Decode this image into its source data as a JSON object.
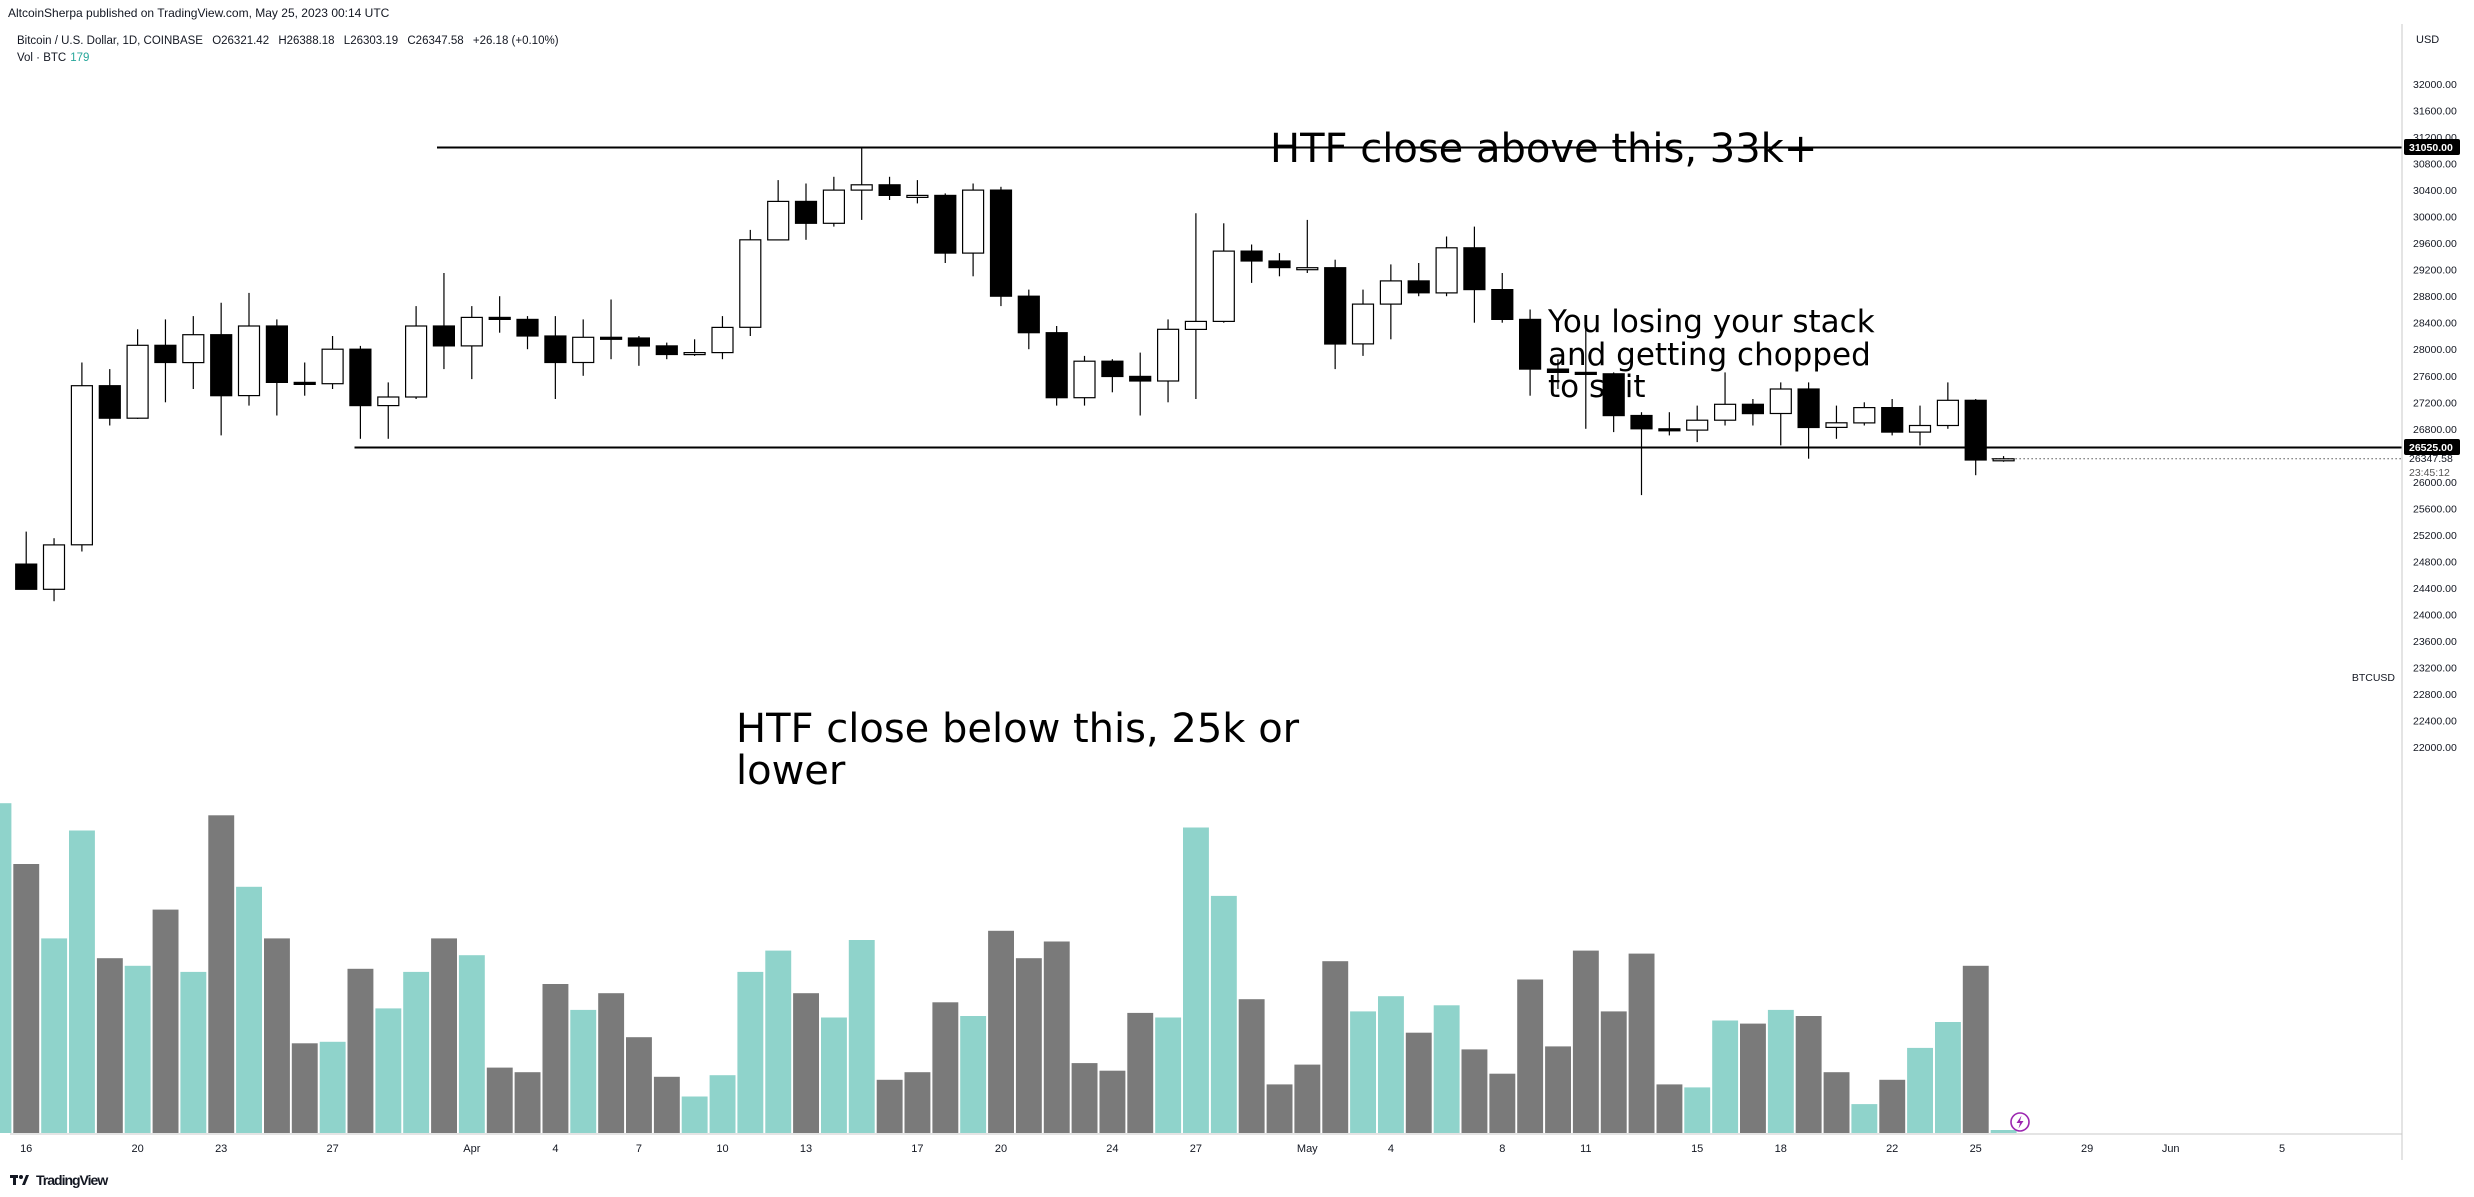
{
  "header": {
    "published_line": "AltcoinSherpa published on TradingView.com, May 25, 2023 00:14 UTC",
    "symbol_line": [
      "Bitcoin / U.S. Dollar, 1D, COINBASE",
      "O26321.42",
      "H26388.18",
      "L26303.19",
      "C26347.58",
      "+26.18 (+0.10%)"
    ],
    "volume_label": "Vol · BTC",
    "volume_value": "179"
  },
  "annotations": {
    "top": "HTF close above this, 33k+",
    "middle": "You losing your stack\nand getting chopped\nto shit",
    "bottom": "HTF close below this, 25k or\nlower"
  },
  "footer": {
    "brand": "TradingView"
  },
  "colors": {
    "up_body": "#ffffff",
    "down_body": "#000000",
    "vol_up": "#8fd3cb",
    "vol_down": "#7a7a7a",
    "volume_accent": "#26a69a",
    "line": "#000000"
  },
  "chart_data": {
    "type": "candlestick",
    "symbol": "BTCUSD",
    "currency_label": "USD",
    "y_ticks": [
      "32000.00",
      "31600.00",
      "31200.00",
      "30800.00",
      "30400.00",
      "30000.00",
      "29600.00",
      "29200.00",
      "28800.00",
      "28400.00",
      "28000.00",
      "27600.00",
      "27200.00",
      "26800.00",
      "26000.00",
      "25600.00",
      "25200.00",
      "24800.00",
      "24400.00",
      "24000.00",
      "23600.00",
      "23200.00",
      "22800.00",
      "22400.00",
      "22000.00"
    ],
    "ylim": [
      21980,
      32500
    ],
    "x_ticks": [
      "16",
      "20",
      "23",
      "27",
      "Apr",
      "4",
      "7",
      "10",
      "13",
      "17",
      "20",
      "24",
      "27",
      "May",
      "4",
      "8",
      "11",
      "15",
      "18",
      "22",
      "25",
      "29",
      "Jun",
      "5"
    ],
    "x_tick_index": [
      1,
      5,
      8,
      12,
      17,
      20,
      23,
      26,
      29,
      33,
      36,
      40,
      43,
      47,
      50,
      54,
      57,
      61,
      64,
      68,
      71,
      75,
      78,
      82
    ],
    "horizontal_levels": [
      {
        "label": "31050.00",
        "value": 31050
      },
      {
        "label": "26525.00",
        "value": 26525
      }
    ],
    "last_price_label": "26347.58",
    "countdown_label": "23:45:12",
    "candles": [
      {
        "date": "2023-03-15",
        "o": 24760,
        "h": 25250,
        "l": 24400,
        "c": 24380
      },
      {
        "date": "2023-03-16",
        "o": 24380,
        "h": 25150,
        "l": 24200,
        "c": 25050
      },
      {
        "date": "2023-03-17",
        "o": 25050,
        "h": 27800,
        "l": 24950,
        "c": 27450
      },
      {
        "date": "2023-03-18",
        "o": 27450,
        "h": 27700,
        "l": 26850,
        "c": 26960
      },
      {
        "date": "2023-03-19",
        "o": 26960,
        "h": 28300,
        "l": 26950,
        "c": 28060
      },
      {
        "date": "2023-03-20",
        "o": 28060,
        "h": 28450,
        "l": 27200,
        "c": 27800
      },
      {
        "date": "2023-03-21",
        "o": 27800,
        "h": 28500,
        "l": 27400,
        "c": 28220
      },
      {
        "date": "2023-03-22",
        "o": 28220,
        "h": 28700,
        "l": 26700,
        "c": 27300
      },
      {
        "date": "2023-03-23",
        "o": 27300,
        "h": 28850,
        "l": 27150,
        "c": 28350
      },
      {
        "date": "2023-03-24",
        "o": 28350,
        "h": 28450,
        "l": 27000,
        "c": 27500
      },
      {
        "date": "2023-03-25",
        "o": 27500,
        "h": 27800,
        "l": 27300,
        "c": 27480
      },
      {
        "date": "2023-03-26",
        "o": 27480,
        "h": 28200,
        "l": 27400,
        "c": 28000
      },
      {
        "date": "2023-03-27",
        "o": 28000,
        "h": 28050,
        "l": 26650,
        "c": 27150
      },
      {
        "date": "2023-03-28",
        "o": 27150,
        "h": 27500,
        "l": 26650,
        "c": 27280
      },
      {
        "date": "2023-03-29",
        "o": 27280,
        "h": 28650,
        "l": 27250,
        "c": 28350
      },
      {
        "date": "2023-03-30",
        "o": 28350,
        "h": 29150,
        "l": 27700,
        "c": 28050
      },
      {
        "date": "2023-03-31",
        "o": 28050,
        "h": 28650,
        "l": 27550,
        "c": 28480
      },
      {
        "date": "2023-04-01",
        "o": 28480,
        "h": 28800,
        "l": 28250,
        "c": 28450
      },
      {
        "date": "2023-04-02",
        "o": 28450,
        "h": 28500,
        "l": 28000,
        "c": 28200
      },
      {
        "date": "2023-04-03",
        "o": 28200,
        "h": 28500,
        "l": 27250,
        "c": 27800
      },
      {
        "date": "2023-04-04",
        "o": 27800,
        "h": 28450,
        "l": 27600,
        "c": 28180
      },
      {
        "date": "2023-04-05",
        "o": 28180,
        "h": 28750,
        "l": 27850,
        "c": 28170
      },
      {
        "date": "2023-04-06",
        "o": 28170,
        "h": 28200,
        "l": 27750,
        "c": 28050
      },
      {
        "date": "2023-04-07",
        "o": 28050,
        "h": 28100,
        "l": 27850,
        "c": 27920
      },
      {
        "date": "2023-04-08",
        "o": 27920,
        "h": 28150,
        "l": 27900,
        "c": 27950
      },
      {
        "date": "2023-04-09",
        "o": 27950,
        "h": 28500,
        "l": 27850,
        "c": 28330
      },
      {
        "date": "2023-04-10",
        "o": 28330,
        "h": 29800,
        "l": 28200,
        "c": 29650
      },
      {
        "date": "2023-04-11",
        "o": 29650,
        "h": 30550,
        "l": 29650,
        "c": 30230
      },
      {
        "date": "2023-04-12",
        "o": 30230,
        "h": 30500,
        "l": 29650,
        "c": 29900
      },
      {
        "date": "2023-04-13",
        "o": 29900,
        "h": 30600,
        "l": 29850,
        "c": 30400
      },
      {
        "date": "2023-04-14",
        "o": 30400,
        "h": 31050,
        "l": 29950,
        "c": 30480
      },
      {
        "date": "2023-04-15",
        "o": 30480,
        "h": 30600,
        "l": 30250,
        "c": 30320
      },
      {
        "date": "2023-04-16",
        "o": 30320,
        "h": 30550,
        "l": 30200,
        "c": 30320
      },
      {
        "date": "2023-04-17",
        "o": 30320,
        "h": 30350,
        "l": 29300,
        "c": 29450
      },
      {
        "date": "2023-04-18",
        "o": 29450,
        "h": 30500,
        "l": 29100,
        "c": 30400
      },
      {
        "date": "2023-04-19",
        "o": 30400,
        "h": 30450,
        "l": 28650,
        "c": 28800
      },
      {
        "date": "2023-04-20",
        "o": 28800,
        "h": 28900,
        "l": 28000,
        "c": 28250
      },
      {
        "date": "2023-04-21",
        "o": 28250,
        "h": 28350,
        "l": 27150,
        "c": 27270
      },
      {
        "date": "2023-04-22",
        "o": 27270,
        "h": 27900,
        "l": 27150,
        "c": 27820
      },
      {
        "date": "2023-04-23",
        "o": 27820,
        "h": 27850,
        "l": 27350,
        "c": 27590
      },
      {
        "date": "2023-04-24",
        "o": 27590,
        "h": 27950,
        "l": 27000,
        "c": 27520
      },
      {
        "date": "2023-04-25",
        "o": 27520,
        "h": 28450,
        "l": 27200,
        "c": 28300
      },
      {
        "date": "2023-04-26",
        "o": 28300,
        "h": 30050,
        "l": 27250,
        "c": 28420
      },
      {
        "date": "2023-04-27",
        "o": 28420,
        "h": 29900,
        "l": 28400,
        "c": 29480
      },
      {
        "date": "2023-04-28",
        "o": 29480,
        "h": 29580,
        "l": 29000,
        "c": 29330
      },
      {
        "date": "2023-04-29",
        "o": 29330,
        "h": 29450,
        "l": 29100,
        "c": 29230
      },
      {
        "date": "2023-04-30",
        "o": 29230,
        "h": 29950,
        "l": 29150,
        "c": 29230
      },
      {
        "date": "2023-05-01",
        "o": 29230,
        "h": 29350,
        "l": 27700,
        "c": 28080
      },
      {
        "date": "2023-05-02",
        "o": 28080,
        "h": 28900,
        "l": 27900,
        "c": 28680
      },
      {
        "date": "2023-05-03",
        "o": 28680,
        "h": 29280,
        "l": 28150,
        "c": 29030
      },
      {
        "date": "2023-05-04",
        "o": 29030,
        "h": 29300,
        "l": 28800,
        "c": 28850
      },
      {
        "date": "2023-05-05",
        "o": 28850,
        "h": 29700,
        "l": 28800,
        "c": 29530
      },
      {
        "date": "2023-05-06",
        "o": 29530,
        "h": 29850,
        "l": 28400,
        "c": 28900
      },
      {
        "date": "2023-05-07",
        "o": 28900,
        "h": 29150,
        "l": 28400,
        "c": 28450
      },
      {
        "date": "2023-05-08",
        "o": 28450,
        "h": 28600,
        "l": 27300,
        "c": 27700
      },
      {
        "date": "2023-05-09",
        "o": 27700,
        "h": 27850,
        "l": 27400,
        "c": 27650
      },
      {
        "date": "2023-05-10",
        "o": 27650,
        "h": 28350,
        "l": 26800,
        "c": 27630
      },
      {
        "date": "2023-05-11",
        "o": 27630,
        "h": 27650,
        "l": 26750,
        "c": 27000
      },
      {
        "date": "2023-05-12",
        "o": 27000,
        "h": 27050,
        "l": 25800,
        "c": 26800
      },
      {
        "date": "2023-05-13",
        "o": 26800,
        "h": 27050,
        "l": 26700,
        "c": 26780
      },
      {
        "date": "2023-05-14",
        "o": 26780,
        "h": 27150,
        "l": 26600,
        "c": 26930
      },
      {
        "date": "2023-05-15",
        "o": 26930,
        "h": 27650,
        "l": 26850,
        "c": 27170
      },
      {
        "date": "2023-05-16",
        "o": 27170,
        "h": 27250,
        "l": 26850,
        "c": 27030
      },
      {
        "date": "2023-05-17",
        "o": 27030,
        "h": 27500,
        "l": 26550,
        "c": 27400
      },
      {
        "date": "2023-05-18",
        "o": 27400,
        "h": 27500,
        "l": 26350,
        "c": 26820
      },
      {
        "date": "2023-05-19",
        "o": 26820,
        "h": 27150,
        "l": 26650,
        "c": 26890
      },
      {
        "date": "2023-05-20",
        "o": 26890,
        "h": 27200,
        "l": 26850,
        "c": 27120
      },
      {
        "date": "2023-05-21",
        "o": 27120,
        "h": 27250,
        "l": 26700,
        "c": 26750
      },
      {
        "date": "2023-05-22",
        "o": 26750,
        "h": 27150,
        "l": 26550,
        "c": 26850
      },
      {
        "date": "2023-05-23",
        "o": 26850,
        "h": 27500,
        "l": 26800,
        "c": 27230
      },
      {
        "date": "2023-05-24",
        "o": 27230,
        "h": 27250,
        "l": 26100,
        "c": 26330
      },
      {
        "date": "2023-05-25",
        "o": 26321.42,
        "h": 26388.18,
        "l": 26303.19,
        "c": 26347.58
      }
    ],
    "volume": [
      {
        "date": "2023-03-14",
        "up": true,
        "v": 21.7
      },
      {
        "date": "2023-03-15",
        "up": false,
        "v": 17.7
      },
      {
        "date": "2023-03-16",
        "up": true,
        "v": 12.8
      },
      {
        "date": "2023-03-17",
        "up": true,
        "v": 19.9
      },
      {
        "date": "2023-03-18",
        "up": false,
        "v": 11.5
      },
      {
        "date": "2023-03-19",
        "up": true,
        "v": 11.0
      },
      {
        "date": "2023-03-20",
        "up": false,
        "v": 14.7
      },
      {
        "date": "2023-03-21",
        "up": true,
        "v": 10.6
      },
      {
        "date": "2023-03-22",
        "up": false,
        "v": 20.9
      },
      {
        "date": "2023-03-23",
        "up": true,
        "v": 16.2
      },
      {
        "date": "2023-03-24",
        "up": false,
        "v": 12.8
      },
      {
        "date": "2023-03-25",
        "up": false,
        "v": 5.9
      },
      {
        "date": "2023-03-26",
        "up": true,
        "v": 6.0
      },
      {
        "date": "2023-03-27",
        "up": false,
        "v": 10.8
      },
      {
        "date": "2023-03-28",
        "up": true,
        "v": 8.2
      },
      {
        "date": "2023-03-29",
        "up": true,
        "v": 10.6
      },
      {
        "date": "2023-03-30",
        "up": false,
        "v": 12.8
      },
      {
        "date": "2023-03-31",
        "up": true,
        "v": 11.7
      },
      {
        "date": "2023-04-01",
        "up": false,
        "v": 4.3
      },
      {
        "date": "2023-04-02",
        "up": false,
        "v": 4.0
      },
      {
        "date": "2023-04-03",
        "up": false,
        "v": 9.8
      },
      {
        "date": "2023-04-04",
        "up": true,
        "v": 8.1
      },
      {
        "date": "2023-04-05",
        "up": false,
        "v": 9.2
      },
      {
        "date": "2023-04-06",
        "up": false,
        "v": 6.3
      },
      {
        "date": "2023-04-07",
        "up": false,
        "v": 3.7
      },
      {
        "date": "2023-04-08",
        "up": true,
        "v": 2.4
      },
      {
        "date": "2023-04-09",
        "up": true,
        "v": 3.8
      },
      {
        "date": "2023-04-10",
        "up": true,
        "v": 10.6
      },
      {
        "date": "2023-04-11",
        "up": true,
        "v": 12.0
      },
      {
        "date": "2023-04-12",
        "up": false,
        "v": 9.2
      },
      {
        "date": "2023-04-13",
        "up": true,
        "v": 7.6
      },
      {
        "date": "2023-04-14",
        "up": true,
        "v": 12.7
      },
      {
        "date": "2023-04-15",
        "up": false,
        "v": 3.5
      },
      {
        "date": "2023-04-16",
        "up": false,
        "v": 4.0
      },
      {
        "date": "2023-04-17",
        "up": false,
        "v": 8.6
      },
      {
        "date": "2023-04-18",
        "up": true,
        "v": 7.7
      },
      {
        "date": "2023-04-19",
        "up": false,
        "v": 13.3
      },
      {
        "date": "2023-04-20",
        "up": false,
        "v": 11.5
      },
      {
        "date": "2023-04-21",
        "up": false,
        "v": 12.6
      },
      {
        "date": "2023-04-22",
        "up": false,
        "v": 4.6
      },
      {
        "date": "2023-04-23",
        "up": false,
        "v": 4.1
      },
      {
        "date": "2023-04-24",
        "up": false,
        "v": 7.9
      },
      {
        "date": "2023-04-25",
        "up": true,
        "v": 7.6
      },
      {
        "date": "2023-04-26",
        "up": true,
        "v": 20.1
      },
      {
        "date": "2023-04-27",
        "up": true,
        "v": 15.6
      },
      {
        "date": "2023-04-28",
        "up": false,
        "v": 8.8
      },
      {
        "date": "2023-04-29",
        "up": false,
        "v": 3.2
      },
      {
        "date": "2023-04-30",
        "up": false,
        "v": 4.5
      },
      {
        "date": "2023-05-01",
        "up": false,
        "v": 11.3
      },
      {
        "date": "2023-05-02",
        "up": true,
        "v": 8.0
      },
      {
        "date": "2023-05-03",
        "up": true,
        "v": 9.0
      },
      {
        "date": "2023-05-04",
        "up": false,
        "v": 6.6
      },
      {
        "date": "2023-05-05",
        "up": true,
        "v": 8.4
      },
      {
        "date": "2023-05-06",
        "up": false,
        "v": 5.5
      },
      {
        "date": "2023-05-07",
        "up": false,
        "v": 3.9
      },
      {
        "date": "2023-05-08",
        "up": false,
        "v": 10.1
      },
      {
        "date": "2023-05-09",
        "up": false,
        "v": 5.7
      },
      {
        "date": "2023-05-10",
        "up": false,
        "v": 12.0
      },
      {
        "date": "2023-05-11",
        "up": false,
        "v": 8.0
      },
      {
        "date": "2023-05-12",
        "up": false,
        "v": 11.8
      },
      {
        "date": "2023-05-13",
        "up": false,
        "v": 3.2
      },
      {
        "date": "2023-05-14",
        "up": true,
        "v": 3.0
      },
      {
        "date": "2023-05-15",
        "up": true,
        "v": 7.4
      },
      {
        "date": "2023-05-16",
        "up": false,
        "v": 7.2
      },
      {
        "date": "2023-05-17",
        "up": true,
        "v": 8.1
      },
      {
        "date": "2023-05-18",
        "up": false,
        "v": 7.7
      },
      {
        "date": "2023-05-19",
        "up": false,
        "v": 4.0
      },
      {
        "date": "2023-05-20",
        "up": true,
        "v": 1.9
      },
      {
        "date": "2023-05-21",
        "up": false,
        "v": 3.5
      },
      {
        "date": "2023-05-22",
        "up": true,
        "v": 5.6
      },
      {
        "date": "2023-05-23",
        "up": true,
        "v": 7.3
      },
      {
        "date": "2023-05-24",
        "up": false,
        "v": 11.0
      },
      {
        "date": "2023-05-25",
        "up": true,
        "v": 0.2
      }
    ]
  }
}
